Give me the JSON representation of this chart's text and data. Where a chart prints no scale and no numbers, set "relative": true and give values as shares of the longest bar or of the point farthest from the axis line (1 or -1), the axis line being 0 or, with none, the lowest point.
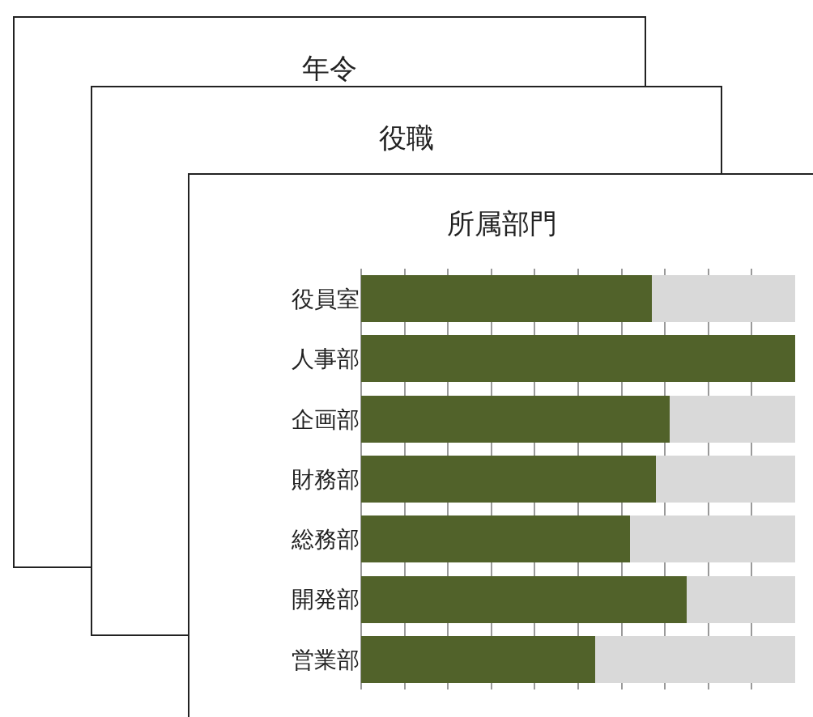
{
  "chart_data": [
    {
      "type": "other",
      "title": "年令"
    },
    {
      "type": "other",
      "title": "役職"
    },
    {
      "type": "bar",
      "title": "所属部門",
      "orientation": "horizontal",
      "stacked": true,
      "relative": true,
      "grid": "x",
      "categories": [
        "役員室",
        "人事部",
        "企画部",
        "財務部",
        "総務部",
        "開発部",
        "営業部"
      ],
      "series": [
        {
          "color": "#51622a",
          "values": [
            0.67,
            1,
            0.71,
            0.68,
            0.62,
            0.75,
            0.54
          ]
        },
        {
          "color": "#d9d9d9",
          "values": [
            0.33,
            0,
            0.29,
            0.32,
            0.38,
            0.25,
            0.46
          ]
        }
      ]
    }
  ]
}
